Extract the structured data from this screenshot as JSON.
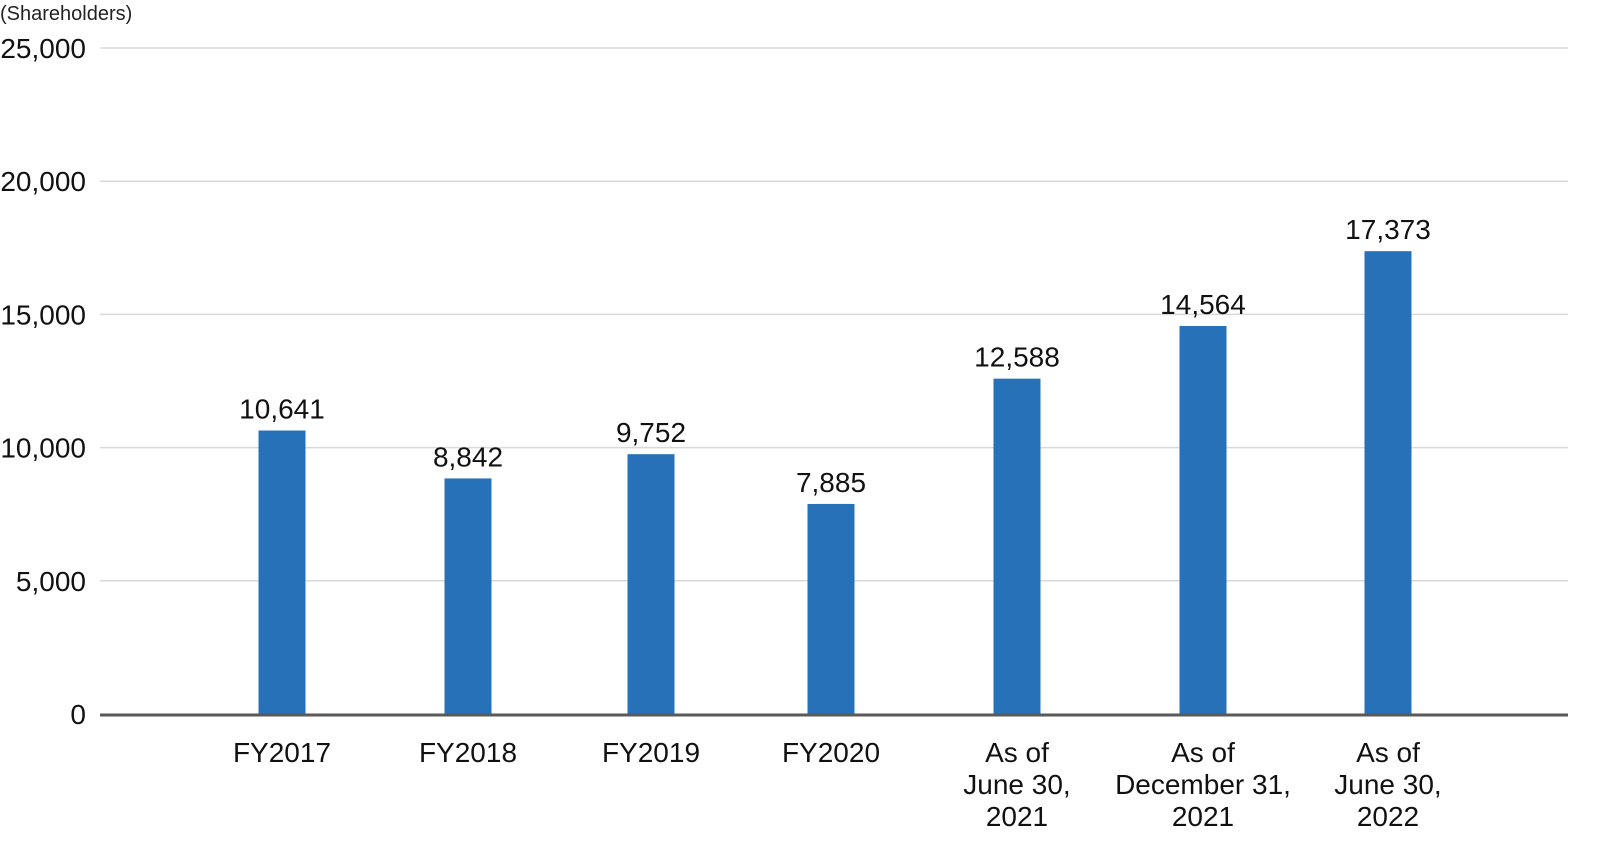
{
  "chart_data": {
    "type": "bar",
    "ylabel": "(Shareholders)",
    "ylim": [
      0,
      25000
    ],
    "yticks": [
      0,
      5000,
      10000,
      15000,
      20000,
      25000
    ],
    "ytick_labels": [
      "0",
      "5,000",
      "10,000",
      "15,000",
      "20,000",
      "25,000"
    ],
    "grid": true,
    "categories": [
      "FY2017",
      "FY2018",
      "FY2019",
      "FY2020",
      "As of June 30, 2021",
      "As of December 31, 2021",
      "As of June 30, 2022"
    ],
    "category_lines": [
      [
        "FY2017"
      ],
      [
        "FY2018"
      ],
      [
        "FY2019"
      ],
      [
        "FY2020"
      ],
      [
        "As of",
        "June 30,",
        "2021"
      ],
      [
        "As of",
        "December 31,",
        "2021"
      ],
      [
        "As of",
        "June 30,",
        "2022"
      ]
    ],
    "values": [
      10641,
      8842,
      9752,
      7885,
      12588,
      14564,
      17373
    ],
    "value_labels": [
      "10,641",
      "8,842",
      "9,752",
      "7,885",
      "12,588",
      "14,564",
      "17,373"
    ],
    "bar_color": "#2671b8",
    "grid_color": "#d9d9d9",
    "axis_color": "#595959"
  }
}
